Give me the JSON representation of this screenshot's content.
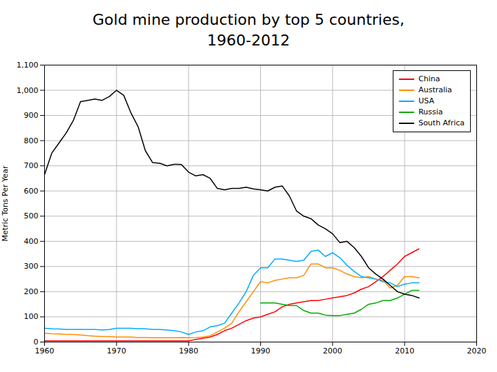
{
  "chart_data": {
    "type": "line",
    "title": "Gold mine production by top 5 countries,",
    "subtitle": "1960-2012",
    "ylabel": "Metric Tons Per Year",
    "x": [
      1960,
      1961,
      1962,
      1963,
      1964,
      1965,
      1966,
      1967,
      1968,
      1969,
      1970,
      1971,
      1972,
      1973,
      1974,
      1975,
      1976,
      1977,
      1978,
      1979,
      1980,
      1981,
      1982,
      1983,
      1984,
      1985,
      1986,
      1987,
      1988,
      1989,
      1990,
      1991,
      1992,
      1993,
      1994,
      1995,
      1996,
      1997,
      1998,
      1999,
      2000,
      2001,
      2002,
      2003,
      2004,
      2005,
      2006,
      2007,
      2008,
      2009,
      2010,
      2011,
      2012
    ],
    "series": [
      {
        "name": "China",
        "color": "#ff0000",
        "values": [
          5,
          5,
          5,
          5,
          5,
          5,
          5,
          5,
          5,
          5,
          5,
          5,
          5,
          5,
          5,
          5,
          5,
          5,
          5,
          5,
          5,
          10,
          15,
          20,
          30,
          45,
          55,
          70,
          85,
          95,
          100,
          110,
          120,
          140,
          150,
          155,
          160,
          165,
          165,
          170,
          175,
          180,
          185,
          195,
          210,
          220,
          240,
          260,
          285,
          310,
          340,
          355,
          370
        ]
      },
      {
        "name": "Australia",
        "color": "#ff8c00",
        "values": [
          35,
          33,
          32,
          30,
          30,
          28,
          25,
          23,
          22,
          22,
          20,
          20,
          20,
          18,
          18,
          17,
          17,
          17,
          17,
          18,
          17,
          18,
          20,
          25,
          40,
          55,
          75,
          120,
          160,
          200,
          240,
          235,
          245,
          250,
          255,
          255,
          265,
          310,
          310,
          295,
          295,
          285,
          270,
          260,
          255,
          260,
          250,
          245,
          215,
          225,
          260,
          260,
          255
        ]
      },
      {
        "name": "USA",
        "color": "#00aaff",
        "values": [
          55,
          53,
          52,
          50,
          50,
          50,
          50,
          50,
          48,
          50,
          55,
          55,
          55,
          53,
          53,
          50,
          50,
          48,
          45,
          40,
          30,
          40,
          45,
          60,
          65,
          75,
          115,
          155,
          200,
          265,
          295,
          295,
          330,
          330,
          325,
          320,
          325,
          360,
          365,
          340,
          355,
          335,
          305,
          280,
          260,
          255,
          250,
          240,
          235,
          220,
          230,
          235,
          235
        ]
      },
      {
        "name": "Russia",
        "color": "#00aa00",
        "values": [
          null,
          null,
          null,
          null,
          null,
          null,
          null,
          null,
          null,
          null,
          null,
          null,
          null,
          null,
          null,
          null,
          null,
          null,
          null,
          null,
          null,
          null,
          null,
          null,
          null,
          null,
          null,
          null,
          null,
          null,
          155,
          155,
          155,
          150,
          145,
          145,
          125,
          115,
          115,
          107,
          105,
          105,
          110,
          115,
          130,
          150,
          155,
          165,
          165,
          175,
          190,
          205,
          205
        ]
      },
      {
        "name": "South Africa",
        "color": "#000000",
        "values": [
          665,
          750,
          790,
          830,
          880,
          955,
          960,
          965,
          960,
          975,
          1000,
          980,
          910,
          855,
          760,
          713,
          710,
          700,
          706,
          705,
          675,
          660,
          665,
          650,
          610,
          605,
          610,
          610,
          615,
          608,
          605,
          600,
          615,
          620,
          580,
          520,
          500,
          490,
          465,
          450,
          430,
          395,
          400,
          375,
          340,
          295,
          270,
          250,
          225,
          200,
          190,
          185,
          175
        ]
      }
    ],
    "xlim": [
      1960,
      2020
    ],
    "xticks": [
      1960,
      1970,
      1980,
      1990,
      2000,
      2010,
      2020
    ],
    "ylim": [
      0,
      1100
    ],
    "yticks": [
      0,
      100,
      200,
      300,
      400,
      500,
      600,
      700,
      800,
      900,
      {
        "value": 1000,
        "label": "1,000"
      },
      {
        "value": 1100,
        "label": "1,100"
      }
    ],
    "grid": true,
    "legend": "upper right"
  }
}
